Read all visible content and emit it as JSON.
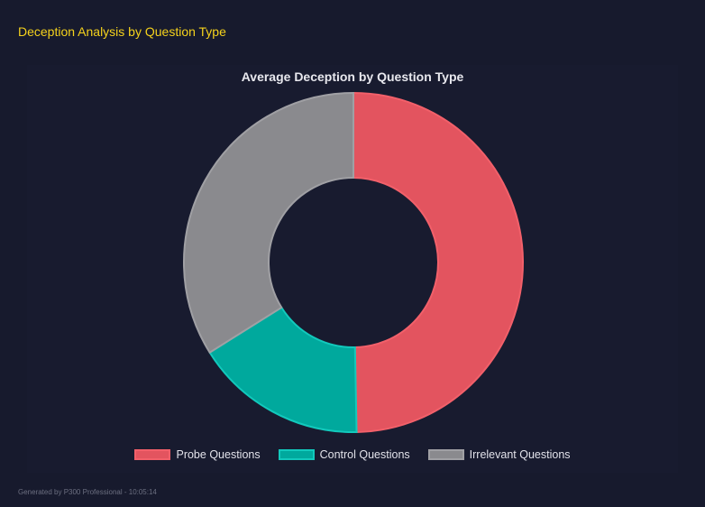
{
  "header": {
    "title": "Deception Analysis by Question Type"
  },
  "footer": {
    "text": "Generated by P300 Professional - 10:05:14"
  },
  "chart_data": {
    "type": "pie",
    "variant": "doughnut",
    "title": "Average Deception by Question Type",
    "categories": [
      "Probe Questions",
      "Control Questions",
      "Irrelevant Questions"
    ],
    "values": [
      49.7,
      16.4,
      33.9
    ],
    "colors": [
      "#e3545f",
      "#00a99d",
      "#8a8a8e"
    ],
    "border_colors": [
      "#f2606a",
      "#12c9bc",
      "#a0a0a4"
    ],
    "legend_position": "bottom"
  }
}
